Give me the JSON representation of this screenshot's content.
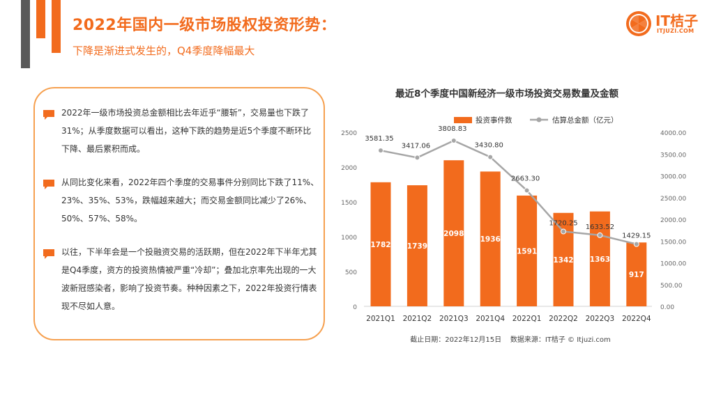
{
  "header": {
    "title": "2022年国内一级市场股权投资形势：",
    "subtitle": "下降是渐进式发生的，Q4季度降幅最大"
  },
  "logo": {
    "text": "IT桔子",
    "sub": "ITJUZI.COM",
    "icon": "orange-slice-icon"
  },
  "paragraphs": [
    "2022年一级市场投资总金额相比去年近乎“腰斩”，交易量也下跌了31%；从季度数据可以看出，这种下跌的趋势是近5个季度不断环比下降、最后累积而成。",
    "从同比变化来看，2022年四个季度的交易事件分别同比下跌了11%、23%、35%、53%，跌幅越来越大；而交易金额同比减少了26%、50%、57%、58%。",
    "以往，下半年会是一个投融资交易的活跃期，但在2022年下半年尤其是Q4季度，资方的投资热情被严重“冷却”；叠加北京率先出现的一大波新冠感染者，影响了投资节奏。种种因素之下，2022年投资行情表现不尽如人意。"
  ],
  "colors": {
    "accent": "#f26b1d",
    "bar": "#f26b1d",
    "line": "#a6a6a6",
    "deco_dark": "#595959"
  },
  "chart_data": {
    "type": "bar",
    "title": "最近8个季度中国新经济一级市场投资交易数量及金额",
    "categories": [
      "2021Q1",
      "2021Q2",
      "2021Q3",
      "2021Q4",
      "2022Q1",
      "2022Q2",
      "2022Q3",
      "2022Q4"
    ],
    "series": [
      {
        "name": "投资事件数",
        "type": "bar",
        "axis": "left",
        "values": [
          1782,
          1739,
          2098,
          1936,
          1591,
          1342,
          1363,
          917
        ]
      },
      {
        "name": "估算总金额（亿元）",
        "type": "line",
        "axis": "right",
        "values": [
          3581.35,
          3417.06,
          3808.83,
          3430.8,
          2663.3,
          1720.25,
          1633.52,
          1429.15
        ],
        "labels": [
          "3581.35",
          "3417.06",
          "3808.83",
          "3430.80",
          "2663.30",
          "1720.25",
          "1633.52",
          "1429.15"
        ]
      }
    ],
    "y_left": {
      "min": 0,
      "max": 2500,
      "ticks": [
        "0",
        "500",
        "1000",
        "1500",
        "2000",
        "2500"
      ]
    },
    "y_right": {
      "min": 0,
      "max": 4000,
      "ticks": [
        "0.00",
        "500.00",
        "1000.00",
        "1500.00",
        "2000.00",
        "2500.00",
        "3000.00",
        "3500.00",
        "4000.00"
      ]
    },
    "legend_position": "top-center",
    "grid": false,
    "footnote": "截止日期：2022年12月15日    数据来源：IT桔子 © Itjuzi.com"
  }
}
